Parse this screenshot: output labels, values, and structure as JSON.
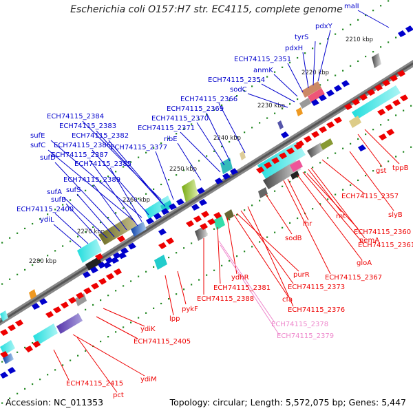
{
  "title": "Escherichia coli O157:H7 str. EC4115, complete genome",
  "footer": {
    "accession": "Accession: NC_011353",
    "topology": "Topology: circular; Length: 5,572,075 bp; Genes: 5,447"
  },
  "ticks": [
    "2210 kbp",
    "2220 kbp",
    "2230 kbp",
    "2240 kbp",
    "2250 kbp",
    "2260 kbp",
    "2270 kbp",
    "2280 kbp"
  ],
  "colors": {
    "forward": "#0000cc",
    "reverse": "#ee0000",
    "pseudo": "#ee88cc",
    "backbone": "#777777"
  },
  "labels_blue": [
    "malI",
    "pdxY",
    "tyrS",
    "pdxH",
    "ECH74115_2351",
    "anmK",
    "ECH74115_2354",
    "sodC",
    "ECH74115_2366",
    "ECH74115_2369",
    "ECH74115_2370",
    "ECH74115_2371",
    "ribE",
    "ECH74115_2384",
    "ECH74115_2383",
    "ECH74115_2382",
    "sufE",
    "ECH74115_2386",
    "ECH74115_2377",
    "sufC",
    "ECH74115_2387",
    "ECH74115_2385",
    "sufD",
    "ECH74115_2389",
    "sufA",
    "sufS",
    "sufB",
    "ECH74115_2400",
    "ydiL"
  ],
  "labels_red": [
    "gst",
    "tppB",
    "ECH74115_2357",
    "slyB",
    "rnt",
    "ECH74115_2360",
    "lhr",
    "nemA",
    "ECH74115_2361",
    "sodB",
    "gloA",
    "ECH74115_2367",
    "purR",
    "ydhR",
    "ECH74115_2373",
    "ECH74115_2381",
    "cfa",
    "ECH74115_2388",
    "ECH74115_2376",
    "pykF",
    "lpp",
    "ydiK",
    "ECH74115_2405",
    "ydiM",
    "ECH74115_2415",
    "pct"
  ],
  "labels_pink": [
    "ECH74115_2378",
    "ECH74115_2379"
  ]
}
